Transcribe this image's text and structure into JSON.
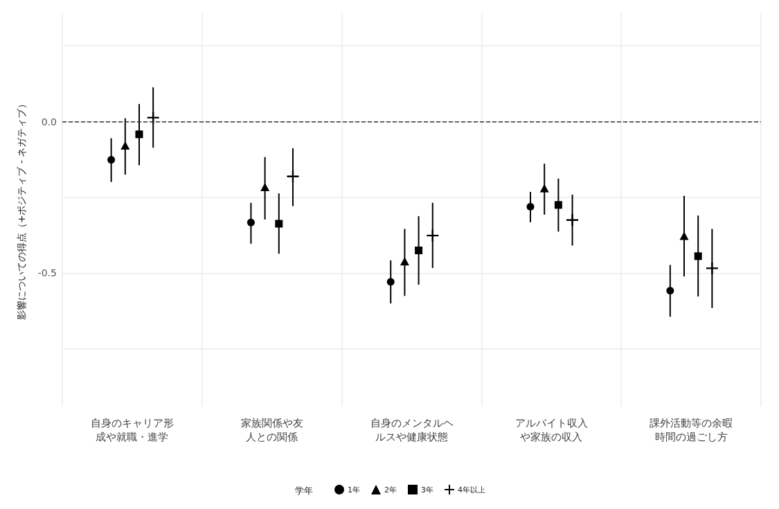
{
  "chart_data": {
    "type": "scatter",
    "ylabel": "影響についての得点（+ポジティブ - ネガティブ）",
    "legend_title": "学年",
    "categories": [
      "自身のキャリア形成や就職・進学",
      "家族関係や友人との関係",
      "自身のメンタルヘルスや健康状態",
      "アルバイト収入や家族の収入",
      "課外活動等の余暇時間の過ごし方"
    ],
    "ylim": [
      -0.94,
      0.36
    ],
    "yticks": [
      {
        "value": 0.25,
        "label": null
      },
      {
        "value": 0,
        "label": "0.0"
      },
      {
        "value": -0.25,
        "label": null
      },
      {
        "value": -0.5,
        "label": "-0.5"
      },
      {
        "value": -0.75,
        "label": null
      }
    ],
    "grid": true,
    "legend": "bottom",
    "ref_lines": [
      {
        "axis": "y",
        "value": 0,
        "line_style": "dashed",
        "color": "#333333"
      }
    ],
    "series": [
      {
        "name": "1年",
        "color": "#000000",
        "marker": "circle",
        "values": [
          -0.126,
          -0.333,
          -0.529,
          -0.281,
          -0.558
        ],
        "errors": [
          [
            -0.199,
            -0.055
          ],
          [
            -0.403,
            -0.268
          ],
          [
            -0.6,
            -0.458
          ],
          [
            -0.332,
            -0.232
          ],
          [
            -0.644,
            -0.473
          ]
        ]
      },
      {
        "name": "2年",
        "color": "#000000",
        "marker": "triangle",
        "values": [
          -0.08,
          -0.217,
          -0.462,
          -0.221,
          -0.378
        ],
        "errors": [
          [
            -0.175,
            0.011
          ],
          [
            -0.323,
            -0.117
          ],
          [
            -0.575,
            -0.354
          ],
          [
            -0.307,
            -0.139
          ],
          [
            -0.511,
            -0.245
          ]
        ]
      },
      {
        "name": "3年",
        "color": "#000000",
        "marker": "square",
        "values": [
          -0.042,
          -0.337,
          -0.425,
          -0.275,
          -0.444
        ],
        "errors": [
          [
            -0.144,
            0.058
          ],
          [
            -0.436,
            -0.237
          ],
          [
            -0.538,
            -0.312
          ],
          [
            -0.363,
            -0.188
          ],
          [
            -0.577,
            -0.31
          ]
        ]
      },
      {
        "name": "4年以上",
        "color": "#000000",
        "marker": "cross",
        "values": [
          0.013,
          -0.181,
          -0.376,
          -0.325,
          -0.484
        ],
        "errors": [
          [
            -0.086,
            0.113
          ],
          [
            -0.279,
            -0.088
          ],
          [
            -0.483,
            -0.268
          ],
          [
            -0.409,
            -0.241
          ],
          [
            -0.615,
            -0.354
          ]
        ]
      }
    ]
  }
}
